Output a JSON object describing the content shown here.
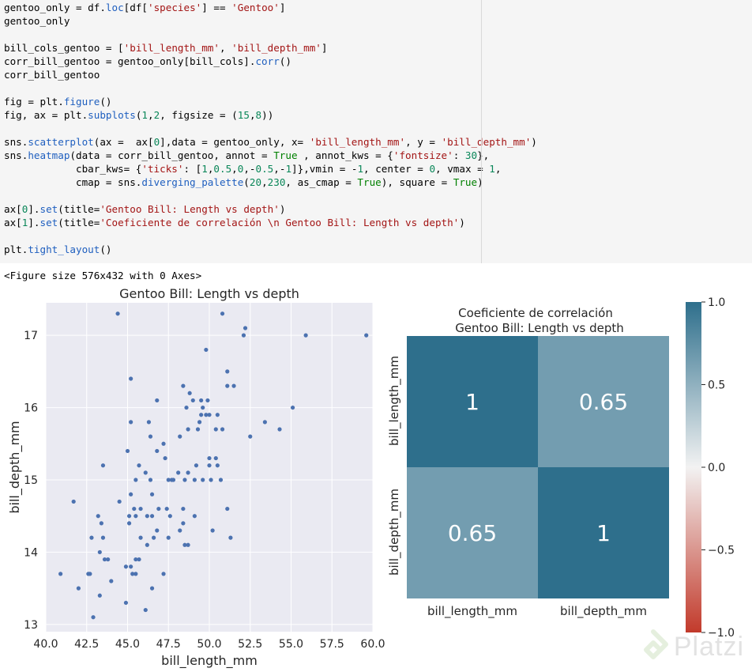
{
  "code_cell": {
    "lines": [
      "gentoo_only = df.loc[df['species'] == 'Gentoo']",
      "gentoo_only",
      "",
      "bill_cols_gentoo = ['bill_length_mm', 'bill_depth_mm']",
      "corr_bill_gentoo = gentoo_only[bill_cols].corr()",
      "corr_bill_gentoo",
      "",
      "fig = plt.figure()",
      "fig, ax = plt.subplots(1,2, figsize = (15,8))",
      "",
      "sns.scatterplot(ax =  ax[0],data = gentoo_only, x= 'bill_length_mm', y = 'bill_depth_mm')",
      "sns.heatmap(data = corr_bill_gentoo, annot = True , annot_kws = {'fontsize': 30},",
      "            cbar_kws= {'ticks': [1,0.5,0,-0.5,-1]},vmin = -1, center = 0, vmax = 1,",
      "            cmap = sns.diverging_palette(20,230, as_cmap = True), square = True)",
      "",
      "ax[0].set(title='Gentoo Bill: Length vs depth')",
      "ax[1].set(title='Coeficiente de correlación \\n Gentoo Bill: Length vs depth')",
      "",
      "plt.tight_layout()"
    ]
  },
  "output_text": "<Figure size 576x432 with 0 Axes>",
  "watermark": {
    "brand": "Platzi"
  },
  "chart_data": [
    {
      "type": "scatter",
      "title": "Gentoo Bill: Length vs depth",
      "xlabel": "bill_length_mm",
      "ylabel": "bill_depth_mm",
      "xlim": [
        40,
        60
      ],
      "ylim": [
        12.9,
        17.45
      ],
      "xticks": [
        "40.0",
        "42.5",
        "45.0",
        "47.5",
        "50.0",
        "52.5",
        "55.0",
        "57.5",
        "60.0"
      ],
      "yticks": [
        "13",
        "14",
        "15",
        "16",
        "17"
      ],
      "grid": true,
      "point_color": "#4c72b0",
      "background": "#eaeaf2",
      "points": [
        [
          40.9,
          13.7
        ],
        [
          41.7,
          14.7
        ],
        [
          42.0,
          13.5
        ],
        [
          42.6,
          13.7
        ],
        [
          42.7,
          13.7
        ],
        [
          42.8,
          14.2
        ],
        [
          42.9,
          13.1
        ],
        [
          43.2,
          14.5
        ],
        [
          43.3,
          13.4
        ],
        [
          43.3,
          14.0
        ],
        [
          43.4,
          14.4
        ],
        [
          43.5,
          15.2
        ],
        [
          43.5,
          14.2
        ],
        [
          43.6,
          13.9
        ],
        [
          43.8,
          13.9
        ],
        [
          44.0,
          13.6
        ],
        [
          44.4,
          17.3
        ],
        [
          44.5,
          14.7
        ],
        [
          44.9,
          13.3
        ],
        [
          44.9,
          13.8
        ],
        [
          45.0,
          15.4
        ],
        [
          45.1,
          14.5
        ],
        [
          45.1,
          14.4
        ],
        [
          45.2,
          14.8
        ],
        [
          45.2,
          13.8
        ],
        [
          45.2,
          16.4
        ],
        [
          45.2,
          15.8
        ],
        [
          45.3,
          13.7
        ],
        [
          45.4,
          14.6
        ],
        [
          45.5,
          13.7
        ],
        [
          45.5,
          13.9
        ],
        [
          45.5,
          14.5
        ],
        [
          45.5,
          15.0
        ],
        [
          45.7,
          13.9
        ],
        [
          45.7,
          15.2
        ],
        [
          45.8,
          14.2
        ],
        [
          45.8,
          14.6
        ],
        [
          46.1,
          13.2
        ],
        [
          46.1,
          15.1
        ],
        [
          46.2,
          14.5
        ],
        [
          46.2,
          14.1
        ],
        [
          46.3,
          15.8
        ],
        [
          46.4,
          15.0
        ],
        [
          46.4,
          15.6
        ],
        [
          46.5,
          13.5
        ],
        [
          46.5,
          14.5
        ],
        [
          46.5,
          14.8
        ],
        [
          46.6,
          14.2
        ],
        [
          46.8,
          14.3
        ],
        [
          46.8,
          15.4
        ],
        [
          46.8,
          16.1
        ],
        [
          46.9,
          14.6
        ],
        [
          47.2,
          13.7
        ],
        [
          47.2,
          15.5
        ],
        [
          47.3,
          15.3
        ],
        [
          47.4,
          14.6
        ],
        [
          47.5,
          14.2
        ],
        [
          47.5,
          15.0
        ],
        [
          47.6,
          14.5
        ],
        [
          47.7,
          15.0
        ],
        [
          47.8,
          15.0
        ],
        [
          48.1,
          15.1
        ],
        [
          48.2,
          14.3
        ],
        [
          48.2,
          15.6
        ],
        [
          48.4,
          14.4
        ],
        [
          48.4,
          14.6
        ],
        [
          48.4,
          16.3
        ],
        [
          48.5,
          14.1
        ],
        [
          48.5,
          15.0
        ],
        [
          48.6,
          16.0
        ],
        [
          48.7,
          14.1
        ],
        [
          48.7,
          15.1
        ],
        [
          48.7,
          15.7
        ],
        [
          48.8,
          16.2
        ],
        [
          49.0,
          16.1
        ],
        [
          49.1,
          14.5
        ],
        [
          49.1,
          15.0
        ],
        [
          49.2,
          15.2
        ],
        [
          49.3,
          15.7
        ],
        [
          49.4,
          15.8
        ],
        [
          49.5,
          15.9
        ],
        [
          49.5,
          16.1
        ],
        [
          49.6,
          15.0
        ],
        [
          49.6,
          16.0
        ],
        [
          49.8,
          15.9
        ],
        [
          49.8,
          16.8
        ],
        [
          49.9,
          16.1
        ],
        [
          50.0,
          15.2
        ],
        [
          50.0,
          15.3
        ],
        [
          50.0,
          15.9
        ],
        [
          50.1,
          15.0
        ],
        [
          50.2,
          14.3
        ],
        [
          50.4,
          15.3
        ],
        [
          50.4,
          15.7
        ],
        [
          50.5,
          15.2
        ],
        [
          50.5,
          15.9
        ],
        [
          50.7,
          15.0
        ],
        [
          50.8,
          15.7
        ],
        [
          50.8,
          17.3
        ],
        [
          51.1,
          14.6
        ],
        [
          51.1,
          16.3
        ],
        [
          51.1,
          16.5
        ],
        [
          51.3,
          14.2
        ],
        [
          51.5,
          16.3
        ],
        [
          52.1,
          17.0
        ],
        [
          52.2,
          17.1
        ],
        [
          52.5,
          15.6
        ],
        [
          53.4,
          15.8
        ],
        [
          54.3,
          15.7
        ],
        [
          55.1,
          16.0
        ],
        [
          55.9,
          17.0
        ],
        [
          59.6,
          17.0
        ]
      ]
    },
    {
      "type": "heatmap",
      "title": "Coeficiente de correlación \n Gentoo Bill: Length vs depth",
      "title_lines": [
        "Coeficiente de correlación",
        "Gentoo Bill: Length vs depth"
      ],
      "rows": [
        "bill_length_mm",
        "bill_depth_mm"
      ],
      "columns": [
        "bill_length_mm",
        "bill_depth_mm"
      ],
      "values": [
        [
          1,
          0.65
        ],
        [
          0.65,
          1
        ]
      ],
      "annotations": [
        [
          "1",
          "0.65"
        ],
        [
          "0.65",
          "1"
        ]
      ],
      "vmin": -1,
      "vmax": 1,
      "center": 0,
      "colorbar_ticks": [
        "1.0",
        "0.5",
        "0.0",
        "−0.5",
        "−1.0"
      ],
      "colorbar_tick_values": [
        1,
        0.5,
        0,
        -0.5,
        -1
      ],
      "cmap": {
        "low": "#c23a2b",
        "mid": "#f2f2f2",
        "high": "#2e6f8c"
      }
    }
  ]
}
